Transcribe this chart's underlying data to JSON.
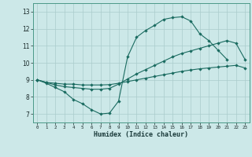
{
  "xlabel": "Humidex (Indice chaleur)",
  "bg_color": "#cce8e8",
  "grid_color": "#aacccc",
  "line_color": "#1a6b60",
  "xlim": [
    -0.5,
    23.5
  ],
  "ylim": [
    6.5,
    13.5
  ],
  "yticks": [
    7,
    8,
    9,
    10,
    11,
    12,
    13
  ],
  "xticks": [
    0,
    1,
    2,
    3,
    4,
    5,
    6,
    7,
    8,
    9,
    10,
    11,
    12,
    13,
    14,
    15,
    16,
    17,
    18,
    19,
    20,
    21,
    22,
    23
  ],
  "series1_x": [
    0,
    1,
    2,
    3,
    4,
    5,
    6,
    7,
    8,
    9,
    10,
    11,
    12,
    13,
    14,
    15,
    16,
    17,
    18,
    19,
    20,
    21
  ],
  "series1_y": [
    9.0,
    8.8,
    8.55,
    8.3,
    7.85,
    7.6,
    7.25,
    7.0,
    7.05,
    7.75,
    10.35,
    11.5,
    11.9,
    12.2,
    12.55,
    12.65,
    12.7,
    12.45,
    11.7,
    11.3,
    10.75,
    10.2
  ],
  "series2_x": [
    0,
    1,
    2,
    3,
    4,
    5,
    6,
    7,
    8,
    9,
    10,
    11,
    12,
    13,
    14,
    15,
    16,
    17,
    18,
    19,
    20,
    21,
    22,
    23
  ],
  "series2_y": [
    9.0,
    8.85,
    8.7,
    8.6,
    8.55,
    8.5,
    8.45,
    8.45,
    8.5,
    8.75,
    9.05,
    9.35,
    9.6,
    9.85,
    10.1,
    10.35,
    10.55,
    10.7,
    10.85,
    11.0,
    11.15,
    11.3,
    11.15,
    10.2
  ],
  "series3_x": [
    0,
    1,
    2,
    3,
    4,
    5,
    6,
    7,
    8,
    9,
    10,
    11,
    12,
    13,
    14,
    15,
    16,
    17,
    18,
    19,
    20,
    21,
    22,
    23
  ],
  "series3_y": [
    9.0,
    8.85,
    8.8,
    8.75,
    8.75,
    8.7,
    8.7,
    8.7,
    8.72,
    8.8,
    8.9,
    9.0,
    9.1,
    9.2,
    9.3,
    9.4,
    9.5,
    9.58,
    9.65,
    9.7,
    9.75,
    9.8,
    9.85,
    9.7
  ]
}
